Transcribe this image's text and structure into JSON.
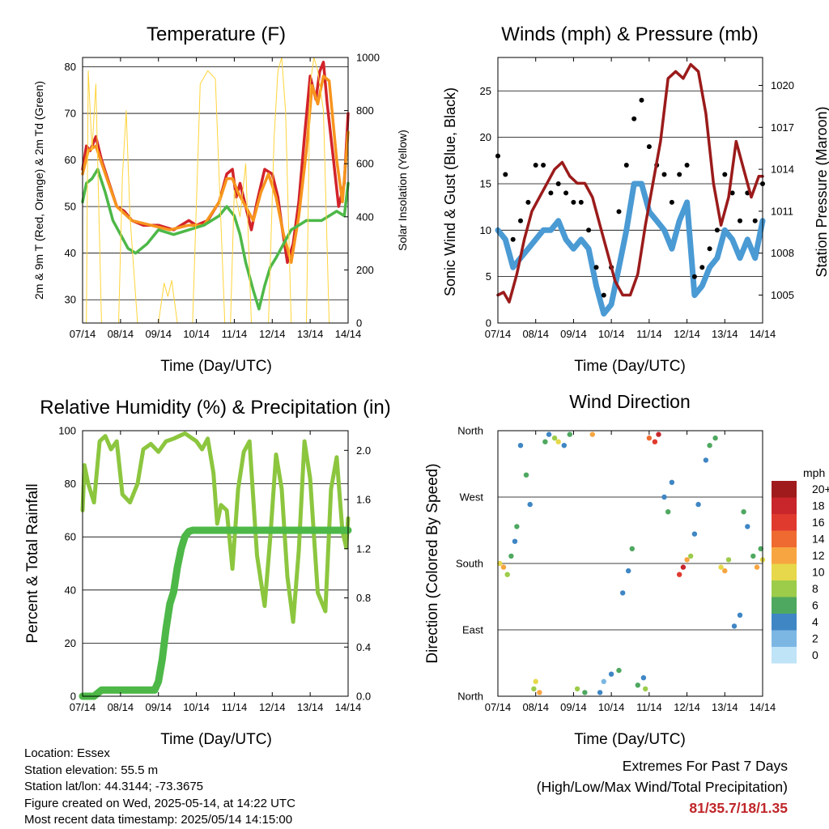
{
  "chart_data": [
    {
      "type": "line",
      "title": "Temperature (F)",
      "xlabel": "Time (Day/UTC)",
      "ylabel": "2m & 9m T (Red, Orange) & 2m Td (Green)",
      "y2label": "Solar Insolation (Yellow)",
      "x_ticks": [
        "07/14",
        "08/14",
        "09/14",
        "10/14",
        "11/14",
        "12/14",
        "13/14",
        "14/14"
      ],
      "ylim": [
        25,
        82
      ],
      "y_ticks": [
        30,
        40,
        50,
        60,
        70,
        80
      ],
      "y2lim": [
        0,
        1000
      ],
      "y2_ticks": [
        0,
        200,
        400,
        600,
        800,
        1000
      ],
      "grid": true,
      "series": [
        {
          "name": "2m T",
          "color": "#d2232a",
          "axis": "left",
          "x": [
            0,
            0.1,
            0.2,
            0.35,
            0.5,
            0.7,
            0.9,
            1.1,
            1.3,
            1.6,
            2,
            2.4,
            2.8,
            3.0,
            3.3,
            3.6,
            3.8,
            3.95,
            4.05,
            4.15,
            4.3,
            4.45,
            4.6,
            4.8,
            5.0,
            5.15,
            5.25,
            5.4,
            5.55,
            5.7,
            5.85,
            6.0,
            6.15,
            6.25,
            6.35,
            6.45,
            6.6,
            6.75,
            6.9,
            7.0
          ],
          "y": [
            58,
            63,
            62,
            65,
            60,
            55,
            50,
            49,
            47,
            46,
            46,
            45,
            47,
            46,
            47,
            51,
            57,
            58,
            52,
            55,
            50,
            45,
            51,
            58,
            57,
            52,
            46,
            38,
            42,
            51,
            65,
            78,
            73,
            79,
            81,
            72,
            61,
            50,
            55,
            70
          ]
        },
        {
          "name": "9m T",
          "color": "#f7941d",
          "axis": "left",
          "x": [
            0,
            0.15,
            0.35,
            0.6,
            0.9,
            1.3,
            1.8,
            2.3,
            2.8,
            3.2,
            3.6,
            3.8,
            3.95,
            4.1,
            4.3,
            4.5,
            4.7,
            4.9,
            5.1,
            5.3,
            5.5,
            5.7,
            5.9,
            6.05,
            6.2,
            6.35,
            6.5,
            6.7,
            6.85,
            7.0
          ],
          "y": [
            57,
            62,
            63,
            57,
            50,
            47,
            46,
            45,
            46,
            46,
            51,
            56,
            56,
            53,
            50,
            47,
            53,
            57,
            52,
            44,
            38,
            48,
            62,
            76,
            72,
            78,
            77,
            60,
            51,
            66
          ]
        },
        {
          "name": "2m Td",
          "color": "#4db848",
          "axis": "left",
          "x": [
            0,
            0.1,
            0.25,
            0.4,
            0.6,
            0.8,
            1.0,
            1.2,
            1.4,
            1.7,
            2.0,
            2.4,
            2.8,
            3.2,
            3.6,
            3.8,
            4.0,
            4.15,
            4.3,
            4.5,
            4.65,
            4.8,
            4.95,
            5.1,
            5.3,
            5.5,
            5.7,
            5.9,
            6.1,
            6.3,
            6.5,
            6.7,
            6.9,
            7.0
          ],
          "y": [
            51,
            55,
            56,
            58,
            53,
            47,
            44,
            41,
            40,
            42,
            45,
            44,
            45,
            46,
            48,
            50,
            48,
            44,
            38,
            32,
            28,
            33,
            37,
            39,
            42,
            45,
            46,
            47,
            47,
            47,
            48,
            49,
            48,
            55
          ]
        },
        {
          "name": "Solar Insolation",
          "color": "#ffd43b",
          "axis": "right",
          "x": [
            0.1,
            0.15,
            0.25,
            0.35,
            0.5,
            0.95,
            1.05,
            1.15,
            1.25,
            1.45,
            2.0,
            2.15,
            2.25,
            2.35,
            2.5,
            2.9,
            3.1,
            3.3,
            3.5,
            3.75,
            3.9,
            4.0,
            4.15,
            4.3,
            4.45,
            4.9,
            5.05,
            5.15,
            5.25,
            5.35,
            5.5,
            5.9,
            6.0,
            6.1,
            6.2,
            6.35,
            6.5
          ],
          "y": [
            0,
            950,
            650,
            900,
            0,
            0,
            550,
            800,
            400,
            0,
            0,
            150,
            100,
            160,
            0,
            0,
            900,
            950,
            920,
            0,
            0,
            500,
            400,
            600,
            0,
            0,
            700,
            950,
            1000,
            800,
            0,
            0,
            900,
            1000,
            950,
            800,
            0
          ]
        }
      ]
    },
    {
      "type": "line",
      "title": "Winds (mph) & Pressure (mb)",
      "xlabel": "Time (Day/UTC)",
      "ylabel": "Sonic Wind & Gust (Blue, Black)",
      "y2label": "Station Pressure (Maroon)",
      "x_ticks": [
        "07/14",
        "08/14",
        "09/14",
        "10/14",
        "11/14",
        "12/14",
        "13/14",
        "14/14"
      ],
      "ylim": [
        0,
        28.6
      ],
      "y_ticks": [
        0,
        5,
        10,
        15,
        20,
        25
      ],
      "y2lim": [
        1003,
        1022
      ],
      "y2_ticks": [
        1005,
        1008,
        1011,
        1014,
        1017,
        1020
      ],
      "grid": true,
      "series": [
        {
          "name": "Sonic Wind",
          "color": "#4a9ad4",
          "axis": "left",
          "x": [
            0,
            0.2,
            0.4,
            0.6,
            0.8,
            1.0,
            1.2,
            1.4,
            1.6,
            1.8,
            2.0,
            2.2,
            2.4,
            2.6,
            2.8,
            3.0,
            3.2,
            3.4,
            3.6,
            3.8,
            4.0,
            4.2,
            4.4,
            4.6,
            4.8,
            5.0,
            5.2,
            5.4,
            5.6,
            5.8,
            6.0,
            6.2,
            6.4,
            6.6,
            6.8,
            7.0
          ],
          "y": [
            10,
            9,
            6,
            7,
            8,
            9,
            10,
            10,
            11,
            9,
            8,
            9,
            8,
            4,
            1,
            2,
            6,
            10,
            15,
            15,
            12,
            11,
            10,
            8,
            11,
            13,
            3,
            4,
            6,
            7,
            10,
            9,
            7,
            9,
            7,
            11
          ]
        },
        {
          "name": "Gust",
          "color": "#000000",
          "axis": "left",
          "x": [
            0,
            0.2,
            0.4,
            0.6,
            0.8,
            1.0,
            1.2,
            1.4,
            1.6,
            1.8,
            2.0,
            2.2,
            2.4,
            2.6,
            2.8,
            3.0,
            3.2,
            3.4,
            3.6,
            3.8,
            4.0,
            4.2,
            4.4,
            4.6,
            4.8,
            5.0,
            5.2,
            5.4,
            5.6,
            5.8,
            6.0,
            6.2,
            6.4,
            6.6,
            6.8,
            7.0
          ],
          "y": [
            18,
            16,
            9,
            11,
            13,
            17,
            17,
            14,
            15,
            14,
            13,
            13,
            10,
            6,
            3,
            6,
            12,
            17,
            22,
            24,
            19,
            17,
            16,
            13,
            16,
            17,
            5,
            6,
            8,
            10,
            16,
            14,
            11,
            14,
            11,
            15
          ]
        },
        {
          "name": "Station Pressure",
          "color": "#9b1b1b",
          "axis": "right",
          "x": [
            0,
            0.15,
            0.3,
            0.5,
            0.7,
            0.9,
            1.1,
            1.3,
            1.5,
            1.7,
            1.9,
            2.1,
            2.3,
            2.5,
            2.7,
            2.9,
            3.1,
            3.3,
            3.5,
            3.7,
            3.9,
            4.1,
            4.3,
            4.5,
            4.7,
            4.9,
            5.1,
            5.3,
            5.5,
            5.7,
            5.9,
            6.1,
            6.3,
            6.5,
            6.7,
            6.9,
            7.0
          ],
          "y": [
            1005,
            1005.2,
            1004.5,
            1006.5,
            1009,
            1011,
            1012,
            1013,
            1014,
            1014.5,
            1013.5,
            1013,
            1013,
            1012,
            1010,
            1008,
            1006,
            1005,
            1005,
            1006.5,
            1010,
            1013,
            1016,
            1020.5,
            1021,
            1020.5,
            1021.5,
            1021,
            1018,
            1013,
            1010,
            1012,
            1016,
            1014,
            1012,
            1013.5,
            1013.5
          ]
        }
      ]
    },
    {
      "type": "line",
      "title": "Relative Humidity (%) & Precipitation (in)",
      "xlabel": "Time (Day/UTC)",
      "ylabel": "Percent & Total Rainfall",
      "x_ticks": [
        "07/14",
        "08/14",
        "09/14",
        "10/14",
        "11/14",
        "12/14",
        "13/14",
        "14/14"
      ],
      "ylim": [
        0,
        100
      ],
      "y_ticks": [
        0,
        20,
        40,
        60,
        80,
        100
      ],
      "y2lim": [
        0,
        2.16
      ],
      "y2_ticks": [
        "0.0",
        "0.4",
        "0.8",
        "1.2",
        "1.6",
        "2.0"
      ],
      "grid": true,
      "series": [
        {
          "name": "Relative Humidity",
          "color": "#8cc63f",
          "axis": "left",
          "x": [
            0,
            0.05,
            0.15,
            0.3,
            0.45,
            0.6,
            0.75,
            0.9,
            1.05,
            1.25,
            1.45,
            1.6,
            1.8,
            2.0,
            2.2,
            2.4,
            2.7,
            3.0,
            3.15,
            3.3,
            3.45,
            3.55,
            3.65,
            3.8,
            3.95,
            4.1,
            4.25,
            4.4,
            4.6,
            4.8,
            4.95,
            5.1,
            5.25,
            5.4,
            5.55,
            5.7,
            5.85,
            6.0,
            6.2,
            6.4,
            6.55,
            6.7,
            6.85,
            6.95,
            7.0
          ],
          "y": [
            70,
            87,
            80,
            73,
            96,
            98,
            93,
            96,
            76,
            73,
            80,
            93,
            95,
            92,
            96,
            97,
            99,
            96,
            93,
            97,
            84,
            65,
            72,
            70,
            48,
            78,
            92,
            96,
            53,
            34,
            60,
            91,
            78,
            45,
            28,
            55,
            96,
            82,
            39,
            32,
            78,
            90,
            62,
            56,
            67
          ]
        },
        {
          "name": "Total Rainfall",
          "color": "#4db848",
          "axis": "right",
          "x": [
            0,
            0.3,
            0.5,
            1.0,
            1.5,
            1.9,
            2.0,
            2.1,
            2.2,
            2.3,
            2.4,
            2.5,
            2.6,
            2.7,
            2.8,
            2.9,
            3.0,
            3.2,
            3.5,
            4.0,
            5.0,
            6.0,
            7.0
          ],
          "y": [
            0,
            0,
            0.05,
            0.05,
            0.05,
            0.05,
            0.12,
            0.3,
            0.55,
            0.75,
            0.85,
            1.05,
            1.2,
            1.3,
            1.34,
            1.35,
            1.35,
            1.35,
            1.35,
            1.35,
            1.35,
            1.35,
            1.35
          ]
        }
      ]
    },
    {
      "type": "scatter",
      "title": "Wind Direction",
      "xlabel": "Time (Day/UTC)",
      "ylabel": "Direction (Colored By Speed)",
      "x_ticks": [
        "07/14",
        "08/14",
        "09/14",
        "10/14",
        "11/14",
        "12/14",
        "13/14",
        "14/14"
      ],
      "y_ticks": [
        "North",
        "East",
        "South",
        "West",
        "North"
      ],
      "ylim": [
        0,
        360
      ],
      "grid": true,
      "colorbar": {
        "title": "mph",
        "labels": [
          "20+",
          "18",
          "16",
          "14",
          "12",
          "10",
          "8",
          "6",
          "4",
          "2",
          "0"
        ],
        "colors": [
          "#a01c1c",
          "#c8262a",
          "#e03a2e",
          "#ef6a30",
          "#f7a540",
          "#e6d84a",
          "#9ccc4a",
          "#4fa860",
          "#3f86c4",
          "#7cb7e3",
          "#bfe3f7"
        ]
      },
      "series": [
        {
          "name": "Direction",
          "axis": "left",
          "x": [
            0.05,
            0.15,
            0.25,
            0.35,
            0.45,
            0.5,
            0.6,
            0.75,
            0.85,
            0.95,
            1.0,
            1.1,
            1.25,
            1.35,
            1.5,
            1.6,
            1.75,
            1.9,
            2.1,
            2.3,
            2.5,
            2.7,
            2.8,
            3.0,
            3.2,
            3.3,
            3.45,
            3.55,
            3.7,
            3.85,
            3.9,
            4.0,
            4.15,
            4.25,
            4.4,
            4.5,
            4.6,
            4.8,
            4.9,
            5.0,
            5.1,
            5.2,
            5.3,
            5.5,
            5.6,
            5.75,
            5.9,
            6.0,
            6.1,
            6.25,
            6.4,
            6.5,
            6.6,
            6.75,
            6.85,
            6.95,
            7.0
          ],
          "y": [
            180,
            175,
            165,
            190,
            210,
            230,
            340,
            300,
            260,
            10,
            20,
            5,
            345,
            355,
            350,
            345,
            340,
            355,
            10,
            5,
            355,
            5,
            20,
            30,
            35,
            140,
            170,
            200,
            15,
            25,
            10,
            350,
            345,
            355,
            270,
            250,
            290,
            165,
            175,
            185,
            190,
            220,
            260,
            320,
            340,
            350,
            175,
            170,
            185,
            95,
            110,
            250,
            230,
            190,
            175,
            200,
            185
          ],
          "speed": [
            10,
            12,
            8,
            6,
            4,
            6,
            4,
            5,
            3,
            8,
            10,
            12,
            6,
            4,
            8,
            10,
            4,
            6,
            8,
            6,
            12,
            4,
            2,
            4,
            6,
            4,
            4,
            6,
            6,
            4,
            8,
            14,
            16,
            18,
            4,
            6,
            4,
            16,
            18,
            12,
            8,
            4,
            4,
            4,
            6,
            6,
            10,
            12,
            8,
            4,
            4,
            6,
            4,
            6,
            12,
            6,
            10
          ]
        }
      ]
    }
  ],
  "info": {
    "location": "Location: Essex",
    "elevation": "Station elevation: 55.5 m",
    "latlon": "Station lat/lon: 44.3144; -73.3675",
    "created": "Figure created on Wed, 2025-05-14, at 14:22 UTC",
    "recent": "Most recent data timestamp: 2025/05/14 14:15:00"
  },
  "extremes": {
    "title": "Extremes For Past 7 Days",
    "subtitle": "(High/Low/Max Wind/Total Precipitation)",
    "values": "81/35.7/18/1.35"
  }
}
